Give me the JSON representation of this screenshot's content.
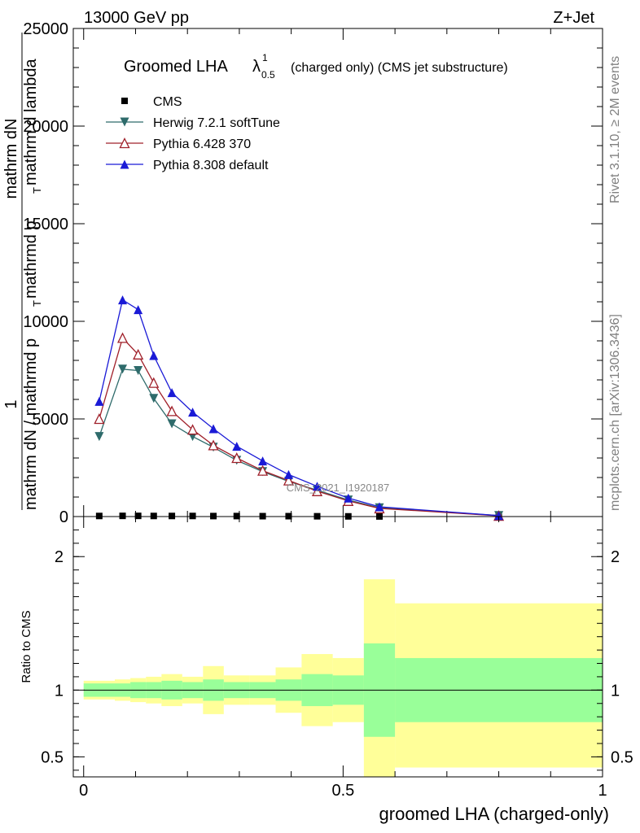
{
  "header": {
    "left": "13000 GeV pp",
    "right": "Z+Jet"
  },
  "side_labels": {
    "rivet": "Rivet 3.1.10, ≥ 2M events",
    "mcplots": "mcplots.cern.ch [arXiv:1306.3436]"
  },
  "title": {
    "main": "Groomed LHA",
    "lambda": "λ",
    "sup": "1",
    "sub": "0.5",
    "rest": "(charged only) (CMS jet substructure)"
  },
  "watermark": "CMS_2021_I1920187",
  "colors": {
    "cms": "#000000",
    "herwig": "#2e6b6b",
    "pythia6": "#a0202a",
    "pythia8": "#1a1ad6",
    "band_inner": "#99ff99",
    "band_outer": "#ffff99"
  },
  "chart_data": [
    {
      "type": "line",
      "panel": "main",
      "ylabel_parts": [
        "1",
        "mathrm dN",
        "mathrm dN / mathrmd p",
        "T",
        " mathrmd p",
        "T",
        " mathrm d lambda"
      ],
      "ylim": [
        0,
        25000
      ],
      "xlim": [
        -0.02,
        1.0
      ],
      "yticks": [
        0,
        5000,
        10000,
        15000,
        20000,
        25000
      ],
      "ytick_labels": [
        "0",
        "5000",
        "10000",
        "15000",
        "20000",
        "25000"
      ],
      "legend_position": "top-left",
      "series": [
        {
          "name": "CMS",
          "marker": "square",
          "x": [
            0.03,
            0.075,
            0.105,
            0.135,
            0.17,
            0.21,
            0.25,
            0.295,
            0.345,
            0.395,
            0.45,
            0.51,
            0.57,
            0.8
          ],
          "y": [
            30,
            35,
            35,
            30,
            30,
            30,
            25,
            25,
            20,
            20,
            15,
            10,
            5,
            1
          ]
        },
        {
          "name": "Herwig 7.2.1 softTune",
          "marker": "triangle-down",
          "x": [
            0.03,
            0.075,
            0.105,
            0.135,
            0.17,
            0.21,
            0.25,
            0.295,
            0.345,
            0.395,
            0.45,
            0.51,
            0.57,
            0.8
          ],
          "y": [
            4100,
            7550,
            7480,
            6050,
            4750,
            4100,
            3550,
            2880,
            2300,
            1800,
            1350,
            850,
            450,
            50
          ]
        },
        {
          "name": "Pythia 6.428 370",
          "marker": "triangle-up-open",
          "x": [
            0.03,
            0.075,
            0.105,
            0.135,
            0.17,
            0.21,
            0.25,
            0.295,
            0.345,
            0.395,
            0.45,
            0.51,
            0.57,
            0.8
          ],
          "y": [
            5000,
            9150,
            8300,
            6850,
            5400,
            4450,
            3650,
            3000,
            2350,
            1850,
            1300,
            800,
            420,
            40
          ]
        },
        {
          "name": "Pythia 8.308 default",
          "marker": "triangle-up",
          "x": [
            0.03,
            0.075,
            0.105,
            0.135,
            0.17,
            0.21,
            0.25,
            0.295,
            0.345,
            0.395,
            0.45,
            0.51,
            0.57,
            0.8
          ],
          "y": [
            5900,
            11100,
            10600,
            8250,
            6350,
            5350,
            4500,
            3600,
            2850,
            2150,
            1550,
            950,
            500,
            50
          ]
        }
      ]
    },
    {
      "type": "area",
      "panel": "ratio",
      "ylabel": "Ratio to CMS",
      "xlabel": "groomed LHA (charged-only)",
      "ylim": [
        0.35,
        2.3
      ],
      "xlim": [
        -0.02,
        1.0
      ],
      "yticks": [
        0.5,
        1,
        2
      ],
      "ytick_labels": [
        "0.5",
        "1",
        "2"
      ],
      "xticks": [
        0,
        0.5,
        1
      ],
      "xtick_labels": [
        "0",
        "0.5",
        "1"
      ],
      "bins": [
        {
          "lo": 0.0,
          "hi": 0.06,
          "inner": [
            0.95,
            1.05
          ],
          "outer": [
            0.93,
            1.07
          ]
        },
        {
          "lo": 0.06,
          "hi": 0.09,
          "inner": [
            0.95,
            1.05
          ],
          "outer": [
            0.92,
            1.08
          ]
        },
        {
          "lo": 0.09,
          "hi": 0.12,
          "inner": [
            0.94,
            1.06
          ],
          "outer": [
            0.91,
            1.09
          ]
        },
        {
          "lo": 0.12,
          "hi": 0.15,
          "inner": [
            0.94,
            1.06
          ],
          "outer": [
            0.9,
            1.1
          ]
        },
        {
          "lo": 0.15,
          "hi": 0.19,
          "inner": [
            0.93,
            1.07
          ],
          "outer": [
            0.88,
            1.12
          ]
        },
        {
          "lo": 0.19,
          "hi": 0.23,
          "inner": [
            0.94,
            1.06
          ],
          "outer": [
            0.9,
            1.1
          ]
        },
        {
          "lo": 0.23,
          "hi": 0.27,
          "inner": [
            0.92,
            1.08
          ],
          "outer": [
            0.82,
            1.18
          ]
        },
        {
          "lo": 0.27,
          "hi": 0.32,
          "inner": [
            0.94,
            1.06
          ],
          "outer": [
            0.89,
            1.11
          ]
        },
        {
          "lo": 0.32,
          "hi": 0.37,
          "inner": [
            0.94,
            1.06
          ],
          "outer": [
            0.89,
            1.11
          ]
        },
        {
          "lo": 0.37,
          "hi": 0.42,
          "inner": [
            0.92,
            1.08
          ],
          "outer": [
            0.83,
            1.17
          ]
        },
        {
          "lo": 0.42,
          "hi": 0.48,
          "inner": [
            0.88,
            1.12
          ],
          "outer": [
            0.73,
            1.27
          ]
        },
        {
          "lo": 0.48,
          "hi": 0.54,
          "inner": [
            0.89,
            1.11
          ],
          "outer": [
            0.76,
            1.24
          ]
        },
        {
          "lo": 0.54,
          "hi": 0.6,
          "inner": [
            0.65,
            1.35
          ],
          "outer": [
            0.35,
            1.83
          ]
        },
        {
          "lo": 0.6,
          "hi": 1.0,
          "inner": [
            0.76,
            1.24
          ],
          "outer": [
            0.42,
            1.65
          ]
        }
      ]
    }
  ]
}
